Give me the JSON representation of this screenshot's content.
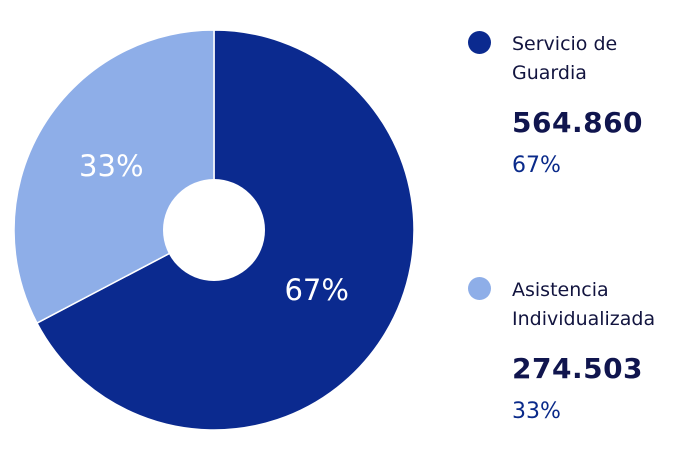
{
  "chart_data": {
    "type": "pie",
    "title": "",
    "slices": [
      {
        "label": "Servicio de Guardia",
        "value": 564860,
        "value_text": "564.860",
        "percent_text": "67%",
        "color": "#0b2a8f"
      },
      {
        "label": "Asistencia Individualizada",
        "value": 274503,
        "value_text": "274.503",
        "percent_text": "33%",
        "color": "#8eaee8"
      }
    ],
    "legend_position": "right"
  }
}
